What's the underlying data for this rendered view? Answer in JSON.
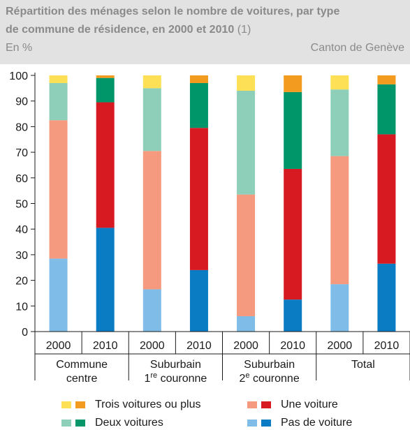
{
  "header": {
    "title_line1": "Répartition des ménages selon le nombre de voitures, par type",
    "title_line2": "de commune de résidence, en 2000 et 2010",
    "title_note": "(1)",
    "unit": "En %",
    "source": "Canton de Genève"
  },
  "chart_data": {
    "type": "bar",
    "stacked": true,
    "ylim": [
      0,
      100
    ],
    "yticks": [
      0,
      10,
      20,
      30,
      40,
      50,
      60,
      70,
      80,
      90,
      100
    ],
    "groups": [
      {
        "label_main": "Commune",
        "label_second": "centre",
        "label_sup": ""
      },
      {
        "label_main": "Suburbain",
        "label_second": "1",
        "label_sup": "re",
        "label_tail": " couronne"
      },
      {
        "label_main": "Suburbain",
        "label_second": "2",
        "label_sup": "e",
        "label_tail": " couronne"
      },
      {
        "label_main": "Total",
        "label_second": "",
        "label_sup": ""
      }
    ],
    "years": [
      "2000",
      "2010"
    ],
    "series": [
      {
        "name": "Pas de voiture",
        "color_2000": "#7fbde8",
        "color_2010": "#0a7cc4",
        "values": [
          28.5,
          40.5,
          16.5,
          24,
          6,
          12.5,
          18.5,
          26.5
        ]
      },
      {
        "name": "Une voiture",
        "color_2000": "#f59a7e",
        "color_2010": "#d71a22",
        "values": [
          54,
          49,
          54,
          55.5,
          47.5,
          51,
          50,
          50.5
        ]
      },
      {
        "name": "Deux voitures",
        "color_2000": "#8dcfb8",
        "color_2010": "#00966a",
        "values": [
          14.5,
          9.5,
          24.5,
          17.5,
          40.5,
          30,
          26,
          19.5
        ]
      },
      {
        "name": "Trois voitures ou plus",
        "color_2000": "#fee057",
        "color_2010": "#f39b1e",
        "values": [
          3,
          1,
          5,
          3,
          6,
          6.5,
          5.5,
          3.5
        ]
      }
    ],
    "legend": [
      {
        "label": "Trois voitures ou plus",
        "color_a": "#fee057",
        "color_b": "#f39b1e"
      },
      {
        "label": "Une voiture",
        "color_a": "#f59a7e",
        "color_b": "#d71a22"
      },
      {
        "label": "Deux voitures",
        "color_a": "#8dcfb8",
        "color_b": "#00966a"
      },
      {
        "label": "Pas de voiture",
        "color_a": "#7fbde8",
        "color_b": "#0a7cc4"
      }
    ]
  }
}
